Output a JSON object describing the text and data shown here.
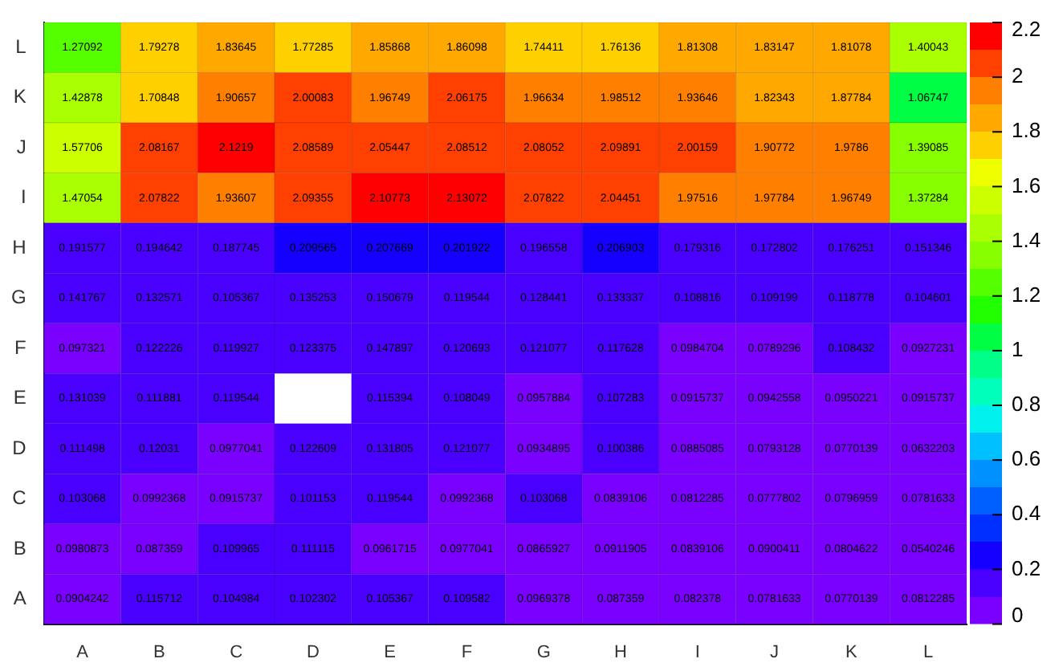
{
  "chart_data": {
    "type": "heatmap",
    "categories": [
      "A",
      "B",
      "C",
      "D",
      "E",
      "F",
      "G",
      "H",
      "I",
      "J",
      "K",
      "L"
    ],
    "y_categories": [
      "L",
      "K",
      "J",
      "I",
      "H",
      "G",
      "F",
      "E",
      "D",
      "C",
      "B",
      "A"
    ],
    "cells": [
      [
        1.27092,
        1.79278,
        1.83645,
        1.77285,
        1.85868,
        1.86098,
        1.74411,
        1.76136,
        1.81308,
        1.83147,
        1.81078,
        1.40043
      ],
      [
        1.42878,
        1.70848,
        1.90657,
        2.00083,
        1.96749,
        2.06175,
        1.96634,
        1.98512,
        1.93646,
        1.82343,
        1.87784,
        1.06747
      ],
      [
        1.57706,
        2.08167,
        2.1219,
        2.08589,
        2.05447,
        2.08512,
        2.08052,
        2.09891,
        2.00159,
        1.90772,
        1.9786,
        1.39085
      ],
      [
        1.47054,
        2.07822,
        1.93607,
        2.09355,
        2.10773,
        2.13072,
        2.07822,
        2.04451,
        1.97516,
        1.97784,
        1.96749,
        1.37284
      ],
      [
        0.191577,
        0.194642,
        0.187745,
        0.209565,
        0.207669,
        0.201922,
        0.196558,
        0.206903,
        0.179316,
        0.172802,
        0.176251,
        0.151346
      ],
      [
        0.141767,
        0.132571,
        0.105367,
        0.135253,
        0.150679,
        0.119544,
        0.128441,
        0.133337,
        0.108816,
        0.109199,
        0.118778,
        0.104601
      ],
      [
        0.097321,
        0.122226,
        0.119927,
        0.123375,
        0.147897,
        0.120693,
        0.121077,
        0.117628,
        0.0984704,
        0.0789296,
        0.108432,
        0.0927231
      ],
      [
        0.131039,
        0.111881,
        0.119544,
        null,
        0.115394,
        0.108049,
        0.0957884,
        0.107283,
        0.0915737,
        0.0942558,
        0.0950221,
        0.0915737
      ],
      [
        0.111498,
        0.12031,
        0.0977041,
        0.122609,
        0.131805,
        0.121077,
        0.0934895,
        0.100386,
        0.0885085,
        0.0793128,
        0.0770139,
        0.0632203
      ],
      [
        0.103068,
        0.0992368,
        0.0915737,
        0.101153,
        0.119544,
        0.0992368,
        0.103068,
        0.0839106,
        0.0812285,
        0.0777802,
        0.0796959,
        0.0781633
      ],
      [
        0.0980873,
        0.087359,
        0.109965,
        0.111115,
        0.0961715,
        0.0977041,
        0.0865927,
        0.0911905,
        0.0839106,
        0.0900411,
        0.0804622,
        0.0540246
      ],
      [
        0.0904242,
        0.115712,
        0.104984,
        0.102302,
        0.105367,
        0.109582,
        0.0969378,
        0.087359,
        0.082378,
        0.0781633,
        0.0770139,
        0.0812285
      ]
    ],
    "data_labels": true,
    "clim": [
      0,
      2.2
    ],
    "cticks": [
      0,
      0.2,
      0.4,
      0.6,
      0.8,
      1,
      1.2,
      1.4,
      1.6,
      1.8,
      2,
      2.2
    ]
  }
}
